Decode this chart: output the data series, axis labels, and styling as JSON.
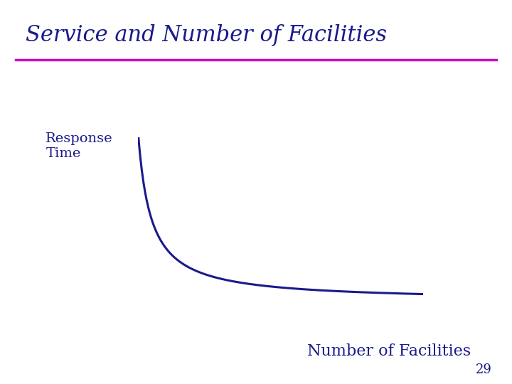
{
  "title": "Service and Number of Facilities",
  "title_color": "#1a1a8c",
  "title_fontsize": 22,
  "underline_color": "#cc00cc",
  "underline_lw": 2.5,
  "ylabel": "Response\nTime",
  "xlabel": "Number of Facilities",
  "axis_color": "#1a1a8c",
  "curve_color": "#1a1a8c",
  "label_color": "#1a1a8c",
  "ylabel_fontsize": 14,
  "xlabel_fontsize": 16,
  "slide_number": "29",
  "slide_number_fontsize": 13,
  "background_color": "#ffffff"
}
